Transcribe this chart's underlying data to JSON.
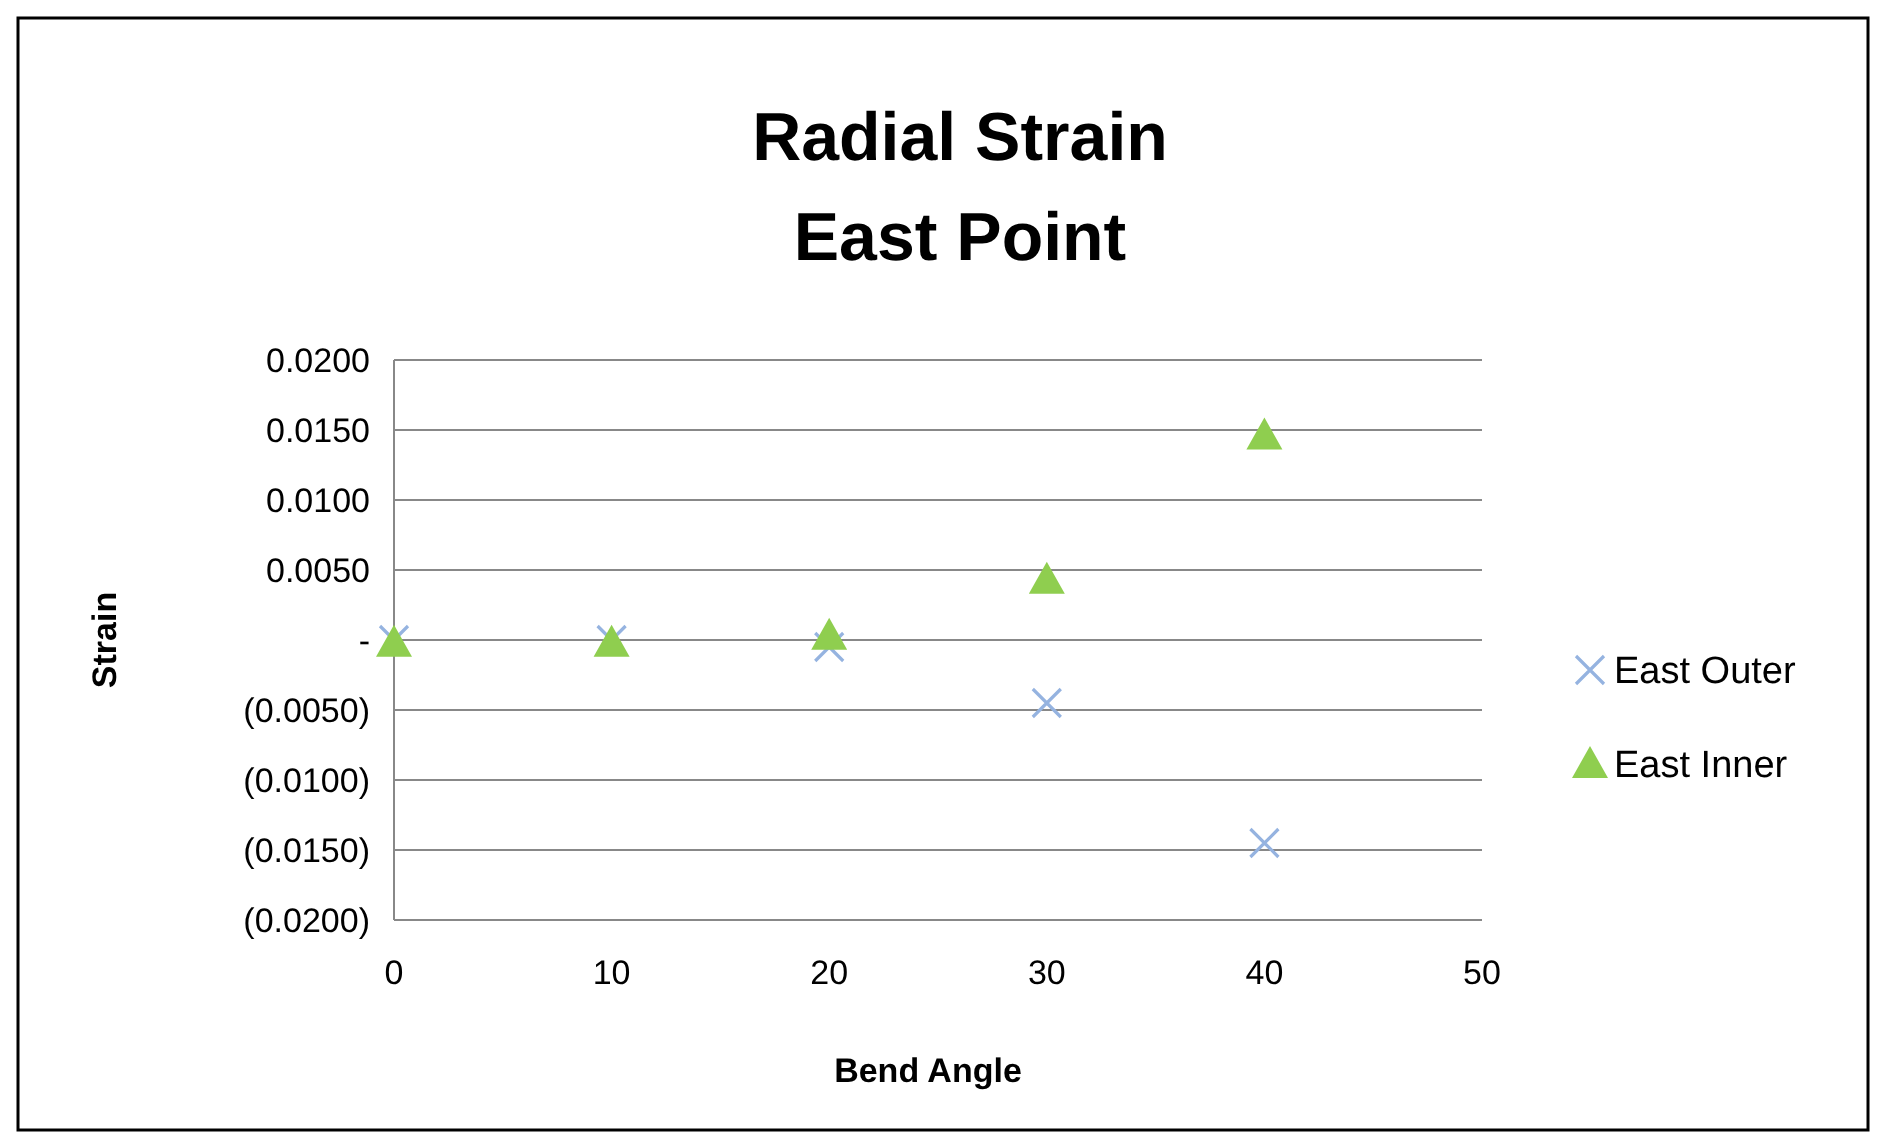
{
  "chart_data": {
    "type": "scatter",
    "title": "Radial Strain\nEast Point",
    "xlabel": "Bend Angle",
    "ylabel": "Strain",
    "xlim": [
      0,
      50
    ],
    "xticks": [
      0,
      10,
      20,
      30,
      40,
      50
    ],
    "ylim": [
      -0.02,
      0.02
    ],
    "yticks": [
      {
        "value": -0.02,
        "label": "(0.0200)"
      },
      {
        "value": -0.015,
        "label": "(0.0150)"
      },
      {
        "value": -0.01,
        "label": "(0.0100)"
      },
      {
        "value": -0.005,
        "label": "(0.0050)"
      },
      {
        "value": 0,
        "label": "-"
      },
      {
        "value": 0.005,
        "label": "0.0050"
      },
      {
        "value": 0.01,
        "label": "0.0100"
      },
      {
        "value": 0.015,
        "label": "0.0150"
      },
      {
        "value": 0.02,
        "label": "0.0200"
      }
    ],
    "grid": "y",
    "legend": "right",
    "series": [
      {
        "name": "East Outer",
        "color": "#95b3e0",
        "marker": "cross",
        "x": [
          0,
          10,
          20,
          30,
          40
        ],
        "values": [
          0,
          0,
          -0.0005,
          -0.0045,
          -0.0145
        ]
      },
      {
        "name": "East Inner",
        "color": "#8fce4f",
        "marker": "triangle",
        "x": [
          0,
          10,
          20,
          30,
          40
        ],
        "values": [
          -0.0002,
          -0.0002,
          0.0003,
          0.0043,
          0.0146
        ]
      }
    ]
  }
}
